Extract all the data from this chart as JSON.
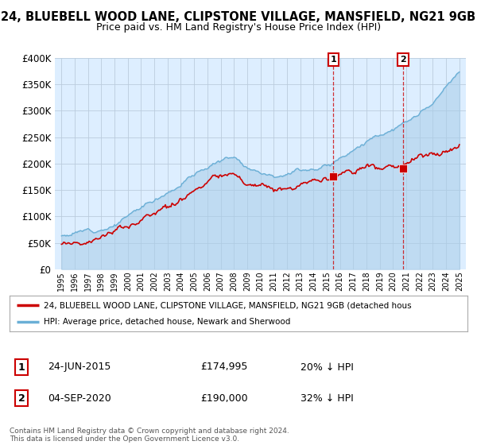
{
  "title": "24, BLUEBELL WOOD LANE, CLIPSTONE VILLAGE, MANSFIELD, NG21 9GB",
  "subtitle": "Price paid vs. HM Land Registry's House Price Index (HPI)",
  "ylim": [
    0,
    400000
  ],
  "yticks": [
    0,
    50000,
    100000,
    150000,
    200000,
    250000,
    300000,
    350000,
    400000
  ],
  "ytick_labels": [
    "£0",
    "£50K",
    "£100K",
    "£150K",
    "£200K",
    "£250K",
    "£300K",
    "£350K",
    "£400K"
  ],
  "hpi_color": "#a8cce8",
  "hpi_line_color": "#6aafd6",
  "price_color": "#cc0000",
  "background_color": "#ffffff",
  "plot_bg_color": "#ddeeff",
  "grid_color": "#bbccdd",
  "legend_label_price": "24, BLUEBELL WOOD LANE, CLIPSTONE VILLAGE, MANSFIELD, NG21 9GB (detached hous",
  "legend_label_hpi": "HPI: Average price, detached house, Newark and Sherwood",
  "annotation1_date": "24-JUN-2015",
  "annotation1_price": "£174,995",
  "annotation1_pct": "20% ↓ HPI",
  "annotation2_date": "04-SEP-2020",
  "annotation2_price": "£190,000",
  "annotation2_pct": "32% ↓ HPI",
  "footer": "Contains HM Land Registry data © Crown copyright and database right 2024.\nThis data is licensed under the Open Government Licence v3.0.",
  "xstart_year": 1995,
  "xend_year": 2025
}
